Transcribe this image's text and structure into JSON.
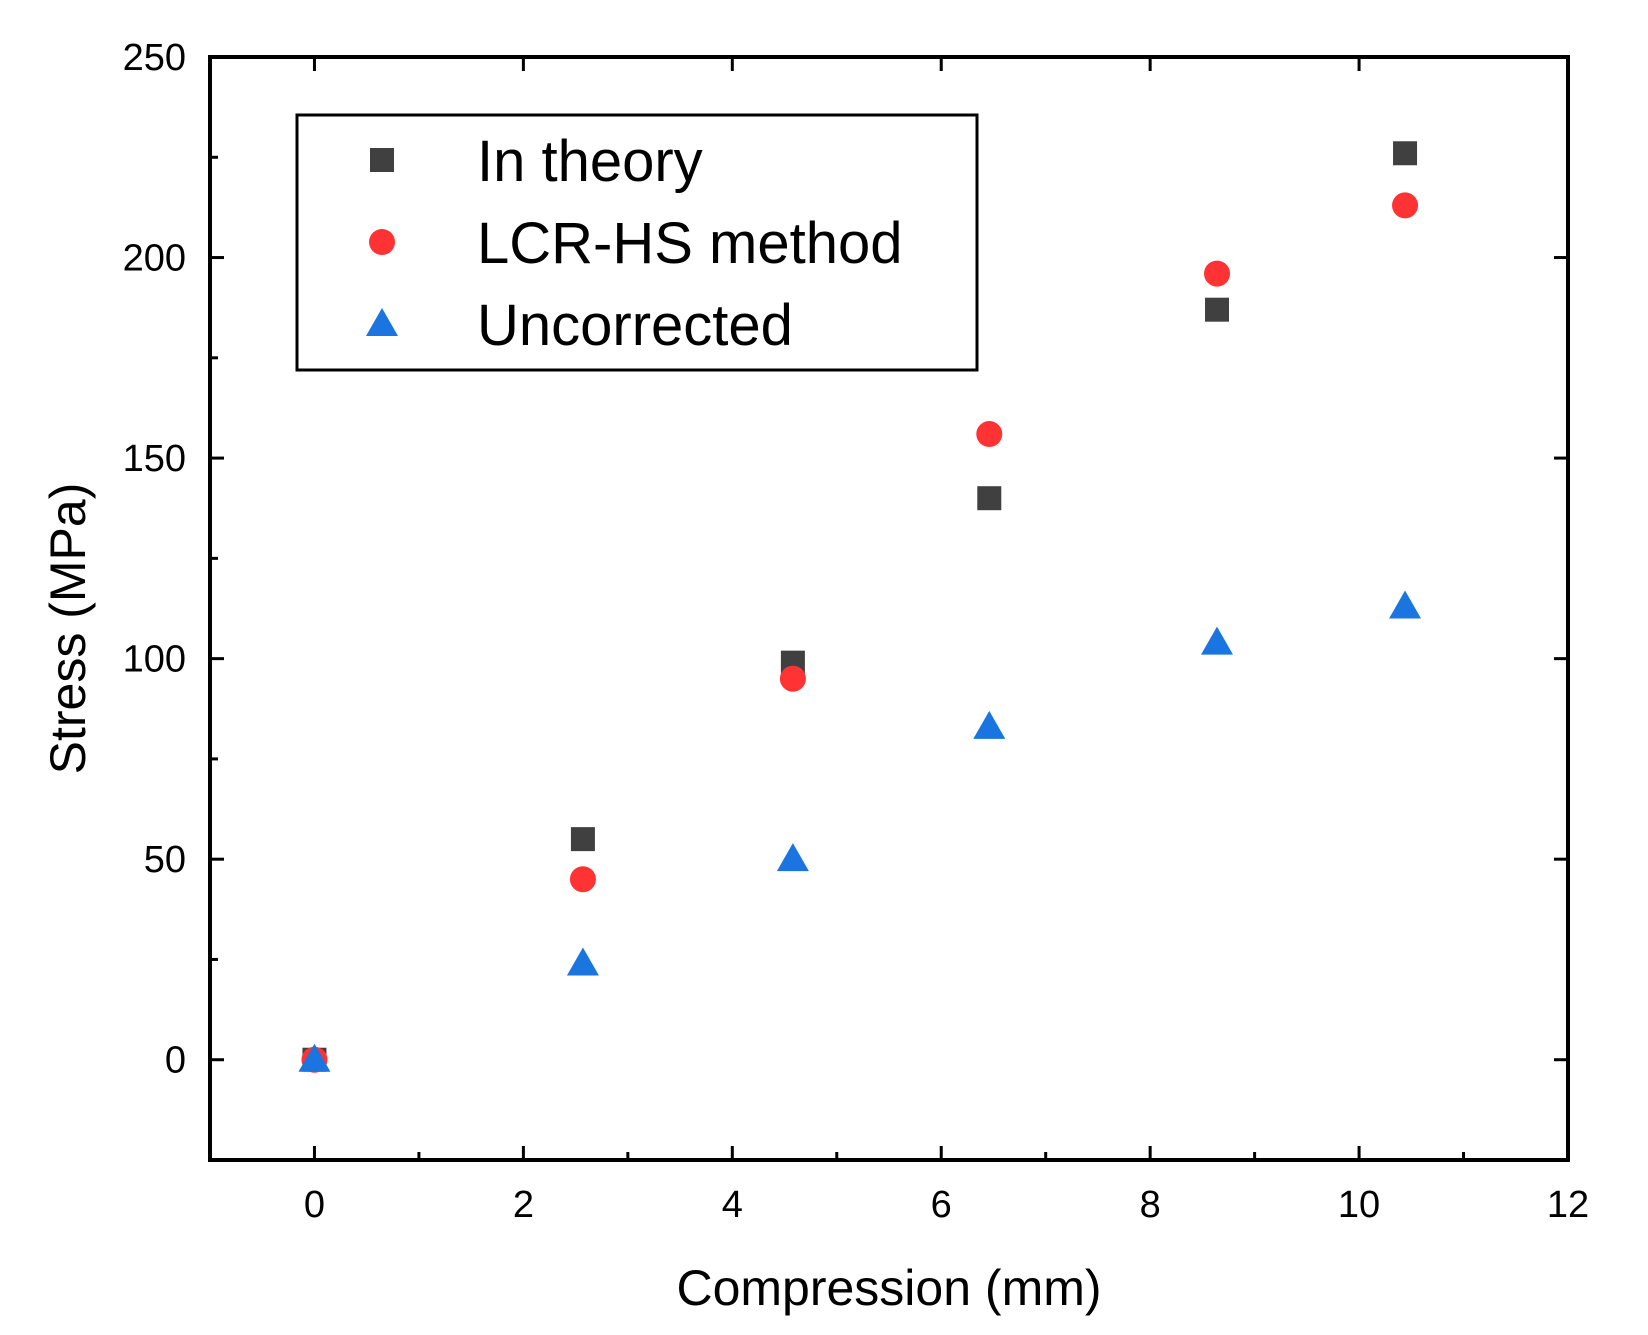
{
  "chart_data": {
    "type": "scatter",
    "xlabel": "Compression (mm)",
    "ylabel": "Stress (MPa)",
    "xlim": [
      -1,
      12
    ],
    "ylim": [
      -25,
      250
    ],
    "xticks": [
      0,
      2,
      4,
      6,
      8,
      10,
      12
    ],
    "yticks": [
      0,
      50,
      100,
      150,
      200,
      250
    ],
    "grid": false,
    "legend_position": "top-left",
    "series": [
      {
        "name": "In theory",
        "marker": "square",
        "color": "#404040",
        "x": [
          0,
          2.57,
          4.58,
          6.46,
          8.64,
          10.44
        ],
        "y": [
          0,
          55,
          99,
          140,
          187,
          226
        ]
      },
      {
        "name": "LCR-HS method",
        "marker": "circle",
        "color": "#ff3333",
        "x": [
          0,
          2.57,
          4.58,
          6.46,
          8.64,
          10.44
        ],
        "y": [
          0,
          45,
          95,
          156,
          196,
          213
        ]
      },
      {
        "name": "Uncorrected",
        "marker": "triangle",
        "color": "#1a75e0",
        "x": [
          0,
          2.57,
          4.58,
          6.46,
          8.64,
          10.44
        ],
        "y": [
          0,
          24,
          50,
          83,
          104,
          113
        ]
      }
    ]
  }
}
